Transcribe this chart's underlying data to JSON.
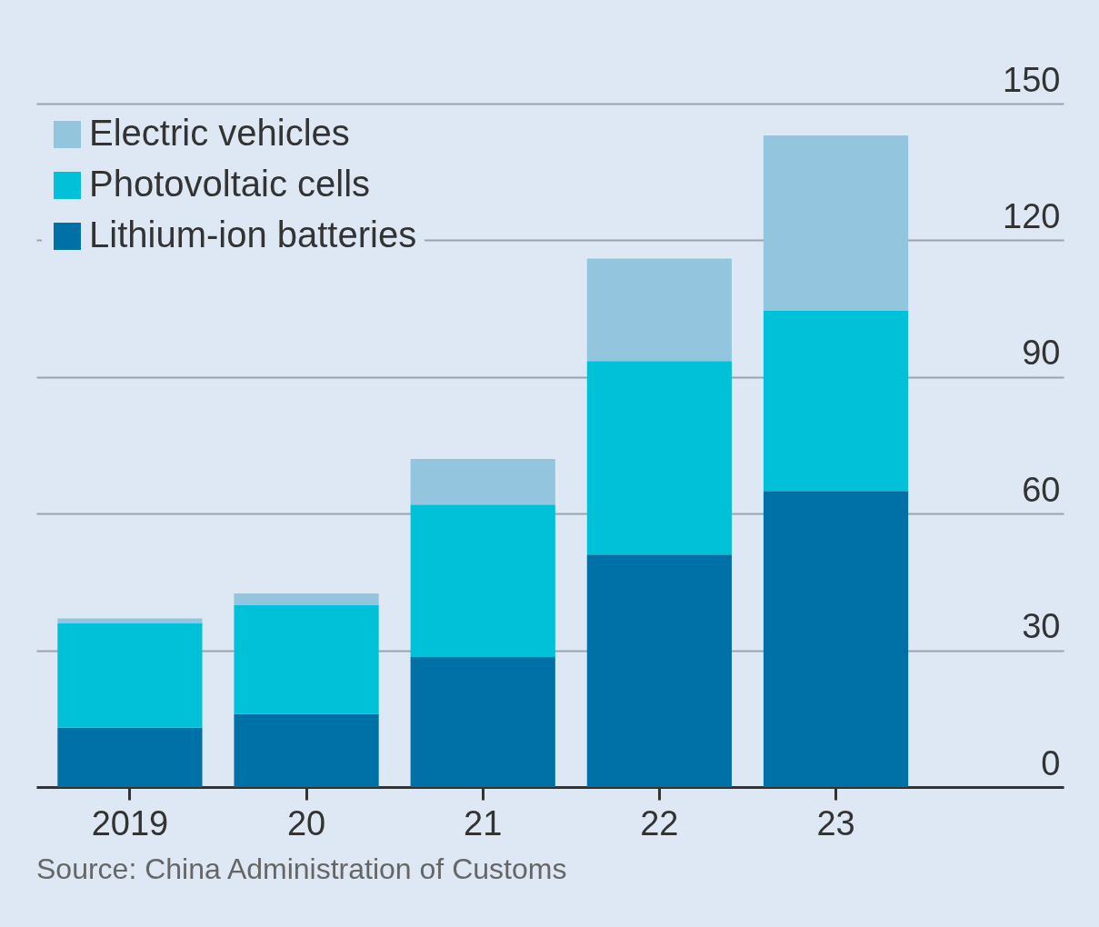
{
  "chart_data": {
    "type": "bar",
    "stacked": true,
    "categories": [
      "2019",
      "20",
      "21",
      "22",
      "23"
    ],
    "series": [
      {
        "name": "Lithium-ion batteries",
        "color": "#0071a7",
        "values": [
          13,
          16,
          28.5,
          51,
          65
        ]
      },
      {
        "name": "Photovoltaic cells",
        "color": "#00c1d8",
        "values": [
          23,
          24,
          33.5,
          42.5,
          39.5
        ]
      },
      {
        "name": "Electric vehicles",
        "color": "#93c6de",
        "values": [
          1,
          2.5,
          10,
          22.5,
          38.5
        ]
      }
    ],
    "ylim": [
      0,
      150
    ],
    "yticks": [
      0,
      30,
      60,
      90,
      120,
      150
    ],
    "grid": "y",
    "legend": "top left",
    "annotations": [
      "Source: China Administration of Customs"
    ]
  }
}
